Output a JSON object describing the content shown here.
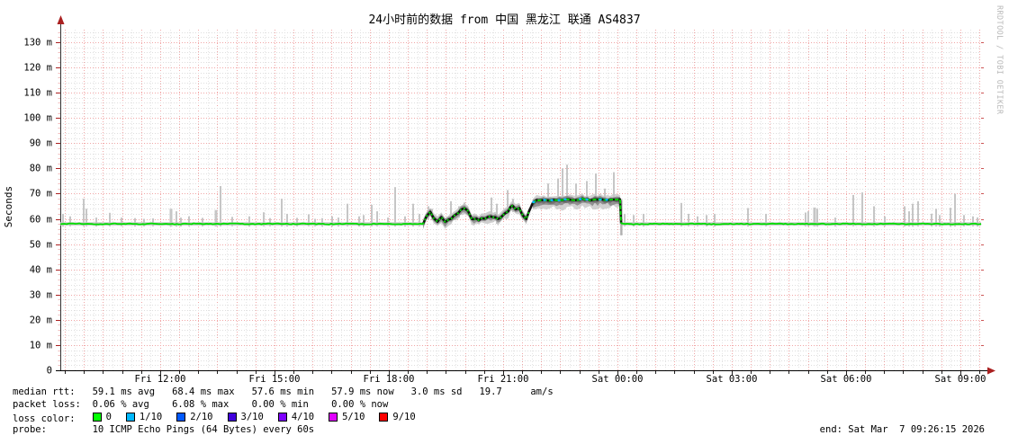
{
  "title": "24小时前的数据 from 中国 黑龙江 联通 AS4837",
  "watermark": "RRDTOOL / TOBI OETIKER",
  "footer": {
    "median_label": "median rtt:",
    "median_stats": "59.1 ms avg   68.4 ms max   57.6 ms min   57.9 ms now   3.0 ms sd   19.7     am/s",
    "loss_label": "packet loss:",
    "loss_stats": "0.06 % avg    6.08 % max    0.00 % min    0.00 % now",
    "loss_color_label": "loss color:",
    "loss_legend": [
      {
        "label": "0",
        "color": "#00ff00"
      },
      {
        "label": "1/10",
        "color": "#00b8ff"
      },
      {
        "label": "2/10",
        "color": "#0059ff"
      },
      {
        "label": "3/10",
        "color": "#4100dd"
      },
      {
        "label": "4/10",
        "color": "#7e00ff"
      },
      {
        "label": "5/10",
        "color": "#e000ff"
      },
      {
        "label": "9/10",
        "color": "#ff0000"
      }
    ],
    "probe_label": "probe:",
    "probe_text": "10 ICMP Echo Pings (64 Bytes) every 60s",
    "end_text": "end: Sat Mar  7 09:26:15 2026"
  },
  "chart_data": {
    "type": "line",
    "title": "24小时前的数据 from 中国 黑龙江 联通 AS4837",
    "ylabel": "Seconds",
    "ylim": [
      0,
      135
    ],
    "y_unit": "milliseconds",
    "grid": {
      "y_major_step": 10,
      "y_minor_step": 2,
      "x_major_minutes": 30,
      "x_minor_minutes": 15
    },
    "y_ticks": [
      {
        "v": 0,
        "label": "0"
      },
      {
        "v": 10,
        "label": "10 m"
      },
      {
        "v": 20,
        "label": "20 m"
      },
      {
        "v": 30,
        "label": "30 m"
      },
      {
        "v": 40,
        "label": "40 m"
      },
      {
        "v": 50,
        "label": "50 m"
      },
      {
        "v": 60,
        "label": "60 m"
      },
      {
        "v": 70,
        "label": "70 m"
      },
      {
        "v": 80,
        "label": "80 m"
      },
      {
        "v": 90,
        "label": "90 m"
      },
      {
        "v": 100,
        "label": "100 m"
      },
      {
        "v": 110,
        "label": "110 m"
      },
      {
        "v": 120,
        "label": "120 m"
      },
      {
        "v": 130,
        "label": "130 m"
      }
    ],
    "x_ticks": [
      {
        "t": 2.622,
        "label": "Fri 12:00"
      },
      {
        "t": 5.622,
        "label": "Fri 15:00"
      },
      {
        "t": 8.622,
        "label": "Fri 18:00"
      },
      {
        "t": 11.622,
        "label": "Fri 21:00"
      },
      {
        "t": 14.622,
        "label": "Sat 00:00"
      },
      {
        "t": 17.622,
        "label": "Sat 03:00"
      },
      {
        "t": 20.622,
        "label": "Sat 06:00"
      },
      {
        "t": 23.622,
        "label": "Sat 09:00"
      }
    ],
    "span_hours": 24.168,
    "first_grid_offset_hours": 0.122,
    "baseline_band": [
      57.4,
      58.65
    ],
    "event": {
      "start": 9.52,
      "end": 14.72,
      "plateau_start": 12.38
    },
    "median": [
      [
        0,
        57.9
      ],
      [
        0.5,
        58.15
      ],
      [
        1.0,
        57.9
      ],
      [
        1.5,
        58.1
      ],
      [
        2.0,
        57.95
      ],
      [
        2.5,
        58.1
      ],
      [
        3.0,
        57.9
      ],
      [
        3.5,
        58.1
      ],
      [
        4.0,
        57.95
      ],
      [
        4.5,
        58.1
      ],
      [
        5.0,
        57.9
      ],
      [
        5.5,
        58.05
      ],
      [
        6.0,
        57.95
      ],
      [
        6.5,
        58.1
      ],
      [
        7.0,
        57.9
      ],
      [
        7.5,
        58.05
      ],
      [
        8.0,
        57.95
      ],
      [
        8.5,
        58.1
      ],
      [
        9.0,
        57.9
      ],
      [
        9.3,
        58.0
      ],
      [
        9.45,
        58.0
      ],
      [
        9.52,
        58.2
      ],
      [
        9.61,
        60.5
      ],
      [
        9.71,
        62.8
      ],
      [
        9.8,
        60.2
      ],
      [
        9.9,
        59.0
      ],
      [
        10.0,
        60.4
      ],
      [
        10.1,
        59.3
      ],
      [
        10.2,
        59.8
      ],
      [
        10.32,
        60.8
      ],
      [
        10.45,
        62.3
      ],
      [
        10.61,
        64.2
      ],
      [
        10.7,
        62.6
      ],
      [
        10.8,
        60.2
      ],
      [
        10.92,
        59.6
      ],
      [
        11.05,
        60.3
      ],
      [
        11.15,
        59.8
      ],
      [
        11.3,
        61.5
      ],
      [
        11.42,
        60.1
      ],
      [
        11.55,
        59.9
      ],
      [
        11.65,
        62.0
      ],
      [
        11.76,
        63.6
      ],
      [
        11.87,
        64.8
      ],
      [
        11.95,
        63.8
      ],
      [
        12.05,
        64.6
      ],
      [
        12.1,
        62.2
      ],
      [
        12.17,
        60.3
      ],
      [
        12.23,
        60.0
      ],
      [
        12.3,
        62.5
      ],
      [
        12.4,
        66.5
      ],
      [
        12.5,
        67.4
      ],
      [
        12.62,
        67.2
      ],
      [
        12.75,
        67.6
      ],
      [
        12.85,
        67.1
      ],
      [
        12.95,
        67.7
      ],
      [
        13.1,
        67.4
      ],
      [
        13.3,
        67.8
      ],
      [
        13.5,
        67.5
      ],
      [
        13.7,
        67.9
      ],
      [
        13.9,
        67.6
      ],
      [
        14.1,
        67.8
      ],
      [
        14.3,
        67.5
      ],
      [
        14.5,
        67.8
      ],
      [
        14.6,
        67.6
      ],
      [
        14.69,
        67.7
      ],
      [
        14.72,
        58.1
      ],
      [
        15.2,
        57.9
      ],
      [
        15.7,
        58.1
      ],
      [
        16.2,
        57.95
      ],
      [
        16.7,
        58.1
      ],
      [
        17.2,
        57.9
      ],
      [
        17.7,
        58.05
      ],
      [
        18.2,
        57.95
      ],
      [
        18.7,
        58.1
      ],
      [
        19.2,
        57.9
      ],
      [
        19.7,
        58.05
      ],
      [
        20.2,
        57.95
      ],
      [
        20.7,
        58.1
      ],
      [
        21.2,
        57.9
      ],
      [
        21.7,
        58.05
      ],
      [
        22.2,
        57.95
      ],
      [
        22.7,
        58.1
      ],
      [
        23.2,
        57.9
      ],
      [
        23.7,
        58.0
      ],
      [
        24.168,
        58.0
      ]
    ],
    "smoke_spikes": [
      [
        0.071,
        62
      ],
      [
        0.26,
        61
      ],
      [
        0.614,
        68
      ],
      [
        0.685,
        64
      ],
      [
        0.945,
        60.5
      ],
      [
        1.299,
        62.4
      ],
      [
        1.606,
        60.5
      ],
      [
        1.961,
        60.3
      ],
      [
        2.197,
        60
      ],
      [
        2.433,
        60.2
      ],
      [
        2.906,
        64,
        3
      ],
      [
        3.047,
        63
      ],
      [
        3.165,
        60.5
      ],
      [
        3.378,
        61
      ],
      [
        3.732,
        60.4
      ],
      [
        4.087,
        63.5,
        3
      ],
      [
        4.205,
        73
      ],
      [
        4.512,
        60.8
      ],
      [
        4.961,
        61
      ],
      [
        5.339,
        62.6
      ],
      [
        5.504,
        60.3
      ],
      [
        5.811,
        68
      ],
      [
        5.953,
        62
      ],
      [
        6.213,
        60.4
      ],
      [
        6.52,
        61.8
      ],
      [
        6.685,
        60
      ],
      [
        6.874,
        60.3
      ],
      [
        7.134,
        61
      ],
      [
        7.299,
        60.5
      ],
      [
        7.535,
        66
      ],
      [
        7.842,
        61
      ],
      [
        7.96,
        61.5
      ],
      [
        8.173,
        65.6
      ],
      [
        8.315,
        63
      ],
      [
        8.598,
        60.5
      ],
      [
        8.787,
        72.6
      ],
      [
        9.047,
        61
      ],
      [
        9.26,
        66
      ],
      [
        9.425,
        62
      ],
      [
        9.661,
        65
      ],
      [
        9.756,
        64
      ],
      [
        10.252,
        67
      ],
      [
        10.465,
        65
      ],
      [
        10.606,
        66.5
      ],
      [
        11.315,
        68.5
      ],
      [
        11.457,
        66
      ],
      [
        11.74,
        71.4
      ],
      [
        11.882,
        68
      ],
      [
        12.803,
        74
      ],
      [
        13.063,
        76
      ],
      [
        13.181,
        80
      ],
      [
        13.299,
        81.5
      ],
      [
        13.535,
        74
      ],
      [
        13.819,
        75
      ],
      [
        14.055,
        78
      ],
      [
        14.291,
        72
      ],
      [
        14.528,
        78.5
      ],
      [
        14.811,
        62
      ],
      [
        15.047,
        61.5
      ],
      [
        15.307,
        62
      ],
      [
        16.299,
        66.3
      ],
      [
        16.488,
        62
      ],
      [
        16.724,
        61
      ],
      [
        16.961,
        61.5
      ],
      [
        17.173,
        62
      ],
      [
        18.047,
        64.3
      ],
      [
        18.52,
        62
      ],
      [
        19.559,
        62.5
      ],
      [
        19.63,
        63
      ],
      [
        19.795,
        64.5,
        3
      ],
      [
        19.866,
        64
      ],
      [
        20.339,
        60.5
      ],
      [
        20.811,
        69.5
      ],
      [
        21.047,
        70.5
      ],
      [
        21.354,
        65
      ],
      [
        21.638,
        61
      ],
      [
        22.157,
        65
      ],
      [
        22.276,
        63
      ],
      [
        22.37,
        66
      ],
      [
        22.512,
        67
      ],
      [
        22.866,
        62
      ],
      [
        22.984,
        64
      ],
      [
        23.079,
        61.5
      ],
      [
        23.362,
        64.4
      ],
      [
        23.48,
        70
      ],
      [
        23.717,
        61.5
      ],
      [
        23.953,
        61
      ],
      [
        24.071,
        60.6
      ]
    ],
    "drop_spike": {
      "t": 14.72,
      "top": 67.5,
      "bottom": 53.5
    },
    "loss_points": [
      12.42,
      12.71,
      12.9,
      13.09,
      13.25,
      13.65,
      13.82,
      14.17,
      14.34
    ],
    "colors": {
      "median_line": "#00dd00",
      "median_shadow": "#111111",
      "smoke_light": "#c6c6c6",
      "smoke_mid": "#b0b0b0",
      "smoke_dark": "#8a8a8a",
      "grid_major": "#f1a6a6",
      "grid_minor": "#dedede",
      "grid_minor_v": "#e5e5e5",
      "axis": "#333333",
      "arrow": "#aa2020",
      "loss_tick": "#00b8ff"
    }
  }
}
